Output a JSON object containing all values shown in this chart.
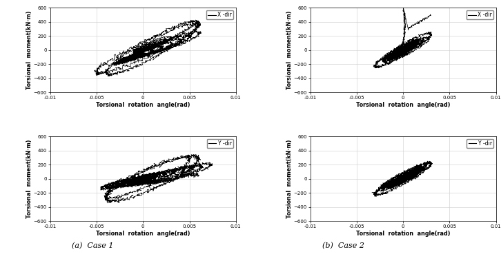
{
  "title_a": "(a)  Case 1",
  "title_b": "(b)  Case 2",
  "xlabel": "Torsional  rotation  angle(rad)",
  "ylabel": "Torsional  moment(kN·m)",
  "xlim": [
    -0.01,
    0.01
  ],
  "ylim": [
    -600,
    600
  ],
  "xticks": [
    -0.01,
    -0.005,
    0,
    0.005,
    0.01
  ],
  "yticks": [
    -600,
    -400,
    -200,
    0,
    200,
    400,
    600
  ],
  "legend_x": "X -dir",
  "legend_y": "Y -dir",
  "bg_color": "#ffffff",
  "line_color": "#000000",
  "grid_color": "#cccccc",
  "lw": 0.5
}
